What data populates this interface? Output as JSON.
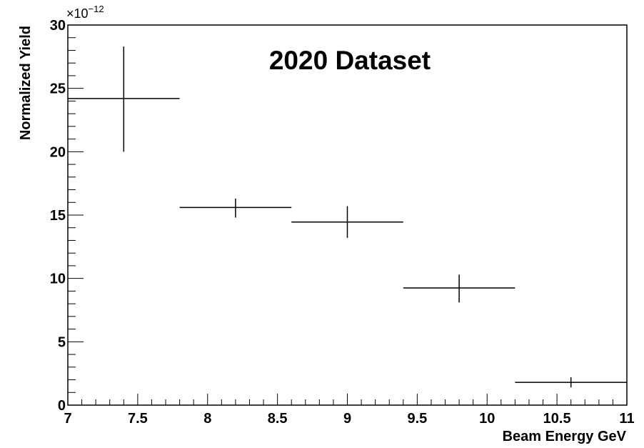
{
  "chart_data": {
    "type": "scatter",
    "title": "",
    "annotation": "2020 Dataset",
    "xlabel": "Beam Energy GeV",
    "ylabel": "Normalized Yield",
    "y_exponent_base": "×10",
    "y_exponent_power": "−12",
    "xlim": [
      7,
      11
    ],
    "ylim": [
      0,
      30
    ],
    "x_ticks": [
      7,
      7.5,
      8,
      8.5,
      9,
      9.5,
      10,
      10.5,
      11
    ],
    "x_tick_labels": [
      "7",
      "7.5",
      "8",
      "8.5",
      "9",
      "9.5",
      "10",
      "10.5",
      "11"
    ],
    "y_ticks": [
      0,
      5,
      10,
      15,
      20,
      25,
      30
    ],
    "y_tick_labels": [
      "0",
      "5",
      "10",
      "15",
      "20",
      "25",
      "30"
    ],
    "grid": false,
    "points": [
      {
        "x": 7.4,
        "x_low": 7.0,
        "x_high": 7.8,
        "y": 24.2,
        "y_low": 20.0,
        "y_high": 28.3
      },
      {
        "x": 8.2,
        "x_low": 7.8,
        "x_high": 8.6,
        "y": 15.6,
        "y_low": 14.8,
        "y_high": 16.3
      },
      {
        "x": 9.0,
        "x_low": 8.6,
        "x_high": 9.4,
        "y": 14.45,
        "y_low": 13.2,
        "y_high": 15.7
      },
      {
        "x": 9.8,
        "x_low": 9.4,
        "x_high": 10.2,
        "y": 9.25,
        "y_low": 8.1,
        "y_high": 10.3
      },
      {
        "x": 10.6,
        "x_low": 10.2,
        "x_high": 11.0,
        "y": 1.8,
        "y_low": 1.4,
        "y_high": 2.2
      }
    ]
  }
}
